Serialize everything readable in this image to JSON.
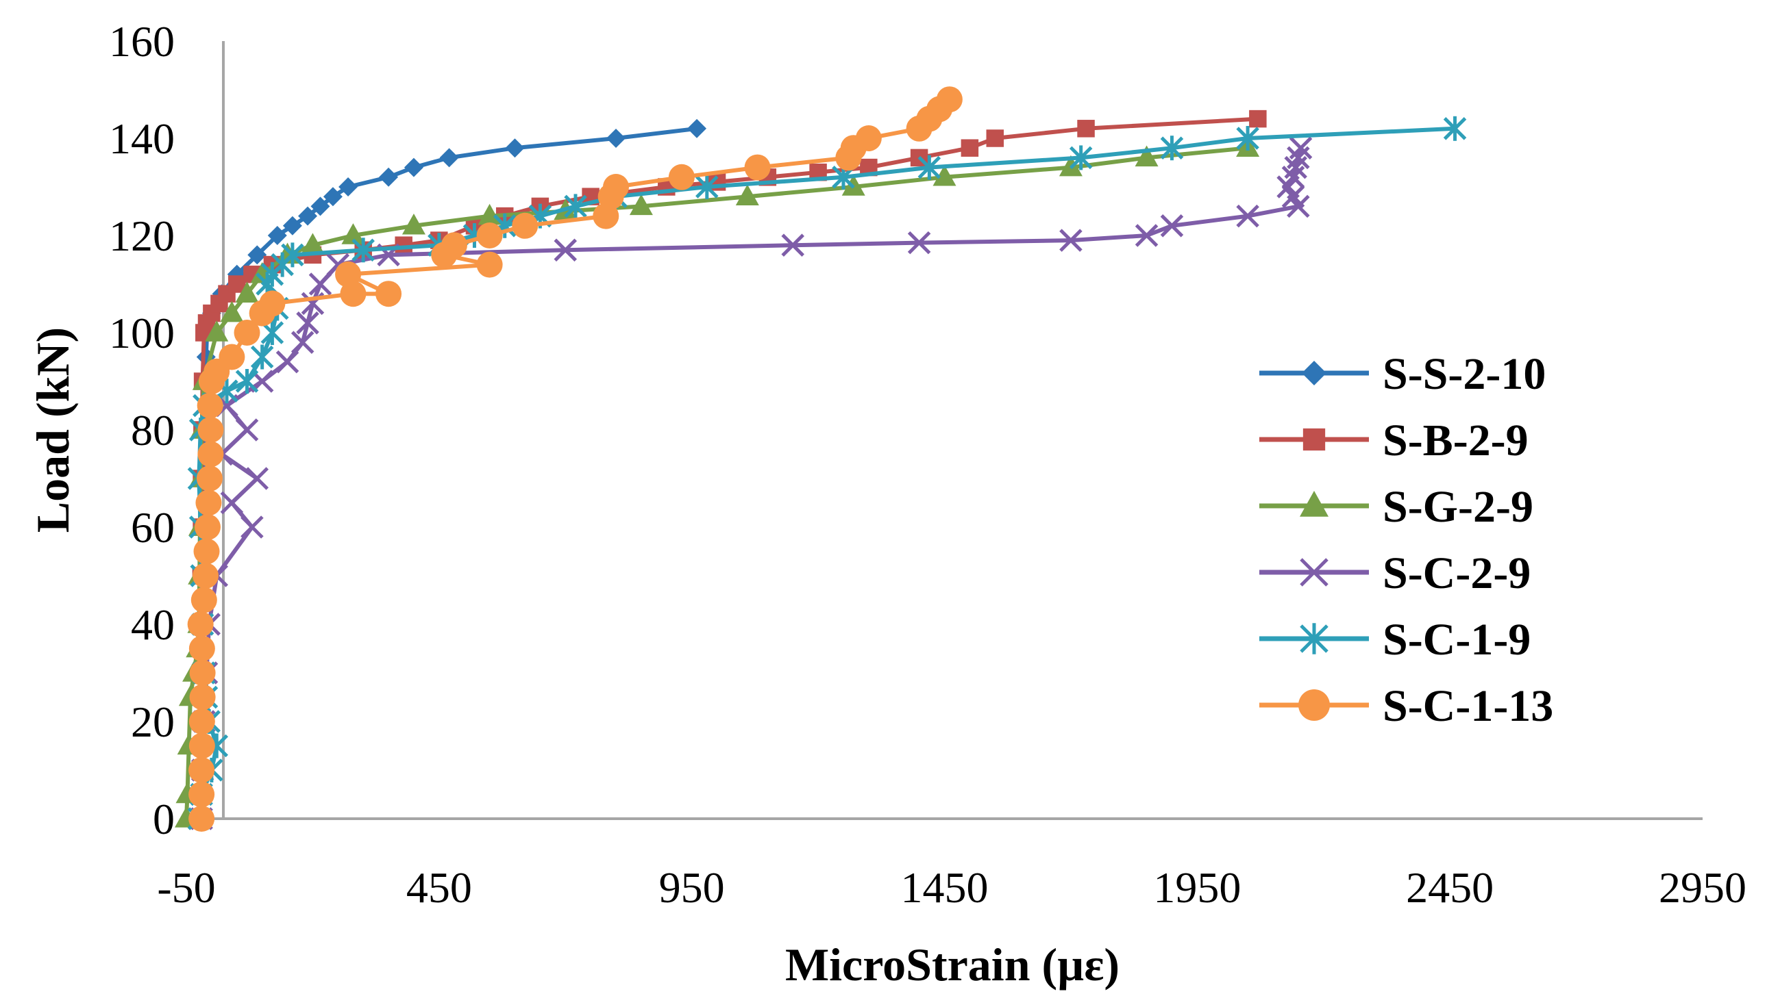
{
  "chart_data": {
    "type": "line",
    "xlabel": "MicroStrain (µε)",
    "ylabel": "Load (kN)",
    "xlim": [
      -50,
      2950
    ],
    "ylim": [
      0,
      160
    ],
    "x_ticks": [
      "-50",
      "450",
      "950",
      "1450",
      "1950",
      "2450",
      "2950"
    ],
    "y_ticks": [
      "0",
      "20",
      "40",
      "60",
      "80",
      "100",
      "120",
      "140",
      "160"
    ],
    "grid": false,
    "legend_position": "right",
    "series": [
      {
        "name": "S-S-2-10",
        "color": "#2E75B6",
        "marker": "diamond",
        "points": [
          [
            -22,
            0
          ],
          [
            -22,
            10
          ],
          [
            -21,
            20
          ],
          [
            -20,
            30
          ],
          [
            -18,
            40
          ],
          [
            -16,
            50
          ],
          [
            -15,
            60
          ],
          [
            -14,
            70
          ],
          [
            -13,
            80
          ],
          [
            -12,
            90
          ],
          [
            -11,
            95
          ],
          [
            -9,
            100
          ],
          [
            0,
            104
          ],
          [
            20,
            108
          ],
          [
            50,
            112
          ],
          [
            90,
            116
          ],
          [
            130,
            120
          ],
          [
            160,
            122
          ],
          [
            190,
            124
          ],
          [
            215,
            126
          ],
          [
            240,
            128
          ],
          [
            270,
            130
          ],
          [
            350,
            132
          ],
          [
            400,
            134
          ],
          [
            470,
            136
          ],
          [
            600,
            138
          ],
          [
            800,
            140
          ],
          [
            960,
            142
          ]
        ]
      },
      {
        "name": "S-B-2-9",
        "color": "#C0504D",
        "marker": "square",
        "points": [
          [
            -22,
            0
          ],
          [
            -22,
            10
          ],
          [
            -22,
            20
          ],
          [
            -22,
            30
          ],
          [
            -21,
            40
          ],
          [
            -21,
            50
          ],
          [
            -20,
            60
          ],
          [
            -20,
            70
          ],
          [
            -19,
            80
          ],
          [
            -18,
            90
          ],
          [
            -15,
            100
          ],
          [
            -10,
            102
          ],
          [
            0,
            104
          ],
          [
            15,
            106
          ],
          [
            30,
            108
          ],
          [
            50,
            110
          ],
          [
            80,
            112
          ],
          [
            120,
            114
          ],
          [
            200,
            116
          ],
          [
            300,
            117
          ],
          [
            380,
            118
          ],
          [
            450,
            119
          ],
          [
            520,
            122
          ],
          [
            580,
            124
          ],
          [
            650,
            126
          ],
          [
            750,
            128
          ],
          [
            900,
            130
          ],
          [
            1000,
            131
          ],
          [
            1100,
            132
          ],
          [
            1200,
            133
          ],
          [
            1300,
            134
          ],
          [
            1400,
            136
          ],
          [
            1500,
            138
          ],
          [
            1550,
            140
          ],
          [
            1730,
            142
          ],
          [
            2070,
            144
          ]
        ]
      },
      {
        "name": "S-G-2-9",
        "color": "#77A047",
        "marker": "triangle",
        "points": [
          [
            -50,
            0
          ],
          [
            -48,
            5
          ],
          [
            -45,
            15
          ],
          [
            -42,
            25
          ],
          [
            -35,
            30
          ],
          [
            -28,
            35
          ],
          [
            -25,
            40
          ],
          [
            -24,
            50
          ],
          [
            -23,
            60
          ],
          [
            -22,
            70
          ],
          [
            -20,
            80
          ],
          [
            -15,
            90
          ],
          [
            10,
            100
          ],
          [
            40,
            104
          ],
          [
            70,
            108
          ],
          [
            100,
            112
          ],
          [
            150,
            116
          ],
          [
            200,
            118
          ],
          [
            280,
            120
          ],
          [
            400,
            122
          ],
          [
            550,
            124
          ],
          [
            700,
            125
          ],
          [
            850,
            126
          ],
          [
            1060,
            128
          ],
          [
            1270,
            130
          ],
          [
            1450,
            132
          ],
          [
            1700,
            134
          ],
          [
            1850,
            136
          ],
          [
            2050,
            138
          ]
        ]
      },
      {
        "name": "S-C-2-9",
        "color": "#7E5DA8",
        "marker": "x",
        "points": [
          [
            -20,
            0
          ],
          [
            -18,
            10
          ],
          [
            -15,
            20
          ],
          [
            -10,
            30
          ],
          [
            -5,
            40
          ],
          [
            10,
            50
          ],
          [
            80,
            60
          ],
          [
            40,
            65
          ],
          [
            90,
            70
          ],
          [
            20,
            75
          ],
          [
            70,
            80
          ],
          [
            30,
            85
          ],
          [
            100,
            90
          ],
          [
            150,
            94
          ],
          [
            180,
            98
          ],
          [
            190,
            102
          ],
          [
            200,
            106
          ],
          [
            215,
            110
          ],
          [
            250,
            114
          ],
          [
            350,
            116
          ],
          [
            700,
            117
          ],
          [
            1150,
            118
          ],
          [
            1400,
            118.5
          ],
          [
            1700,
            119
          ],
          [
            1850,
            120
          ],
          [
            1900,
            122
          ],
          [
            2050,
            124
          ],
          [
            2150,
            126
          ],
          [
            2140,
            128
          ],
          [
            2130,
            130
          ],
          [
            2140,
            132
          ],
          [
            2145,
            134
          ],
          [
            2150,
            136
          ],
          [
            2155,
            138
          ]
        ]
      },
      {
        "name": "S-C-1-9",
        "color": "#2E9FB8",
        "marker": "asterisk",
        "points": [
          [
            -25,
            0
          ],
          [
            -20,
            5
          ],
          [
            0,
            10
          ],
          [
            10,
            15
          ],
          [
            -5,
            20
          ],
          [
            -10,
            25
          ],
          [
            -15,
            30
          ],
          [
            -18,
            40
          ],
          [
            -20,
            50
          ],
          [
            -22,
            60
          ],
          [
            -25,
            70
          ],
          [
            -22,
            80
          ],
          [
            -15,
            85
          ],
          [
            30,
            88
          ],
          [
            70,
            90
          ],
          [
            100,
            95
          ],
          [
            120,
            100
          ],
          [
            130,
            105
          ],
          [
            110,
            110
          ],
          [
            120,
            112
          ],
          [
            140,
            114
          ],
          [
            160,
            116
          ],
          [
            300,
            117
          ],
          [
            450,
            118
          ],
          [
            520,
            120
          ],
          [
            580,
            122
          ],
          [
            650,
            124
          ],
          [
            720,
            126
          ],
          [
            800,
            128
          ],
          [
            980,
            130
          ],
          [
            1250,
            132
          ],
          [
            1420,
            134
          ],
          [
            1720,
            136
          ],
          [
            1900,
            138
          ],
          [
            2050,
            140
          ],
          [
            2460,
            142
          ]
        ]
      },
      {
        "name": "S-C-1-13",
        "color": "#F79646",
        "marker": "circle",
        "points": [
          [
            -20,
            0
          ],
          [
            -20,
            5
          ],
          [
            -20,
            10
          ],
          [
            -19,
            15
          ],
          [
            -19,
            20
          ],
          [
            -18,
            25
          ],
          [
            -18,
            30
          ],
          [
            -19,
            35
          ],
          [
            -22,
            40
          ],
          [
            -15,
            45
          ],
          [
            -12,
            50
          ],
          [
            -10,
            55
          ],
          [
            -8,
            60
          ],
          [
            -6,
            65
          ],
          [
            -4,
            70
          ],
          [
            -2,
            75
          ],
          [
            -2,
            80
          ],
          [
            -3,
            85
          ],
          [
            0,
            90
          ],
          [
            10,
            92
          ],
          [
            40,
            95
          ],
          [
            70,
            100
          ],
          [
            100,
            104
          ],
          [
            120,
            106
          ],
          [
            280,
            108
          ],
          [
            350,
            108
          ],
          [
            270,
            112
          ],
          [
            550,
            114
          ],
          [
            460,
            116
          ],
          [
            480,
            118
          ],
          [
            550,
            120
          ],
          [
            620,
            122
          ],
          [
            780,
            124
          ],
          [
            790,
            128
          ],
          [
            800,
            130
          ],
          [
            930,
            132
          ],
          [
            1080,
            134
          ],
          [
            1260,
            136
          ],
          [
            1270,
            138
          ],
          [
            1300,
            140
          ],
          [
            1400,
            142
          ],
          [
            1420,
            144
          ],
          [
            1440,
            146
          ],
          [
            1460,
            148
          ]
        ]
      }
    ]
  }
}
